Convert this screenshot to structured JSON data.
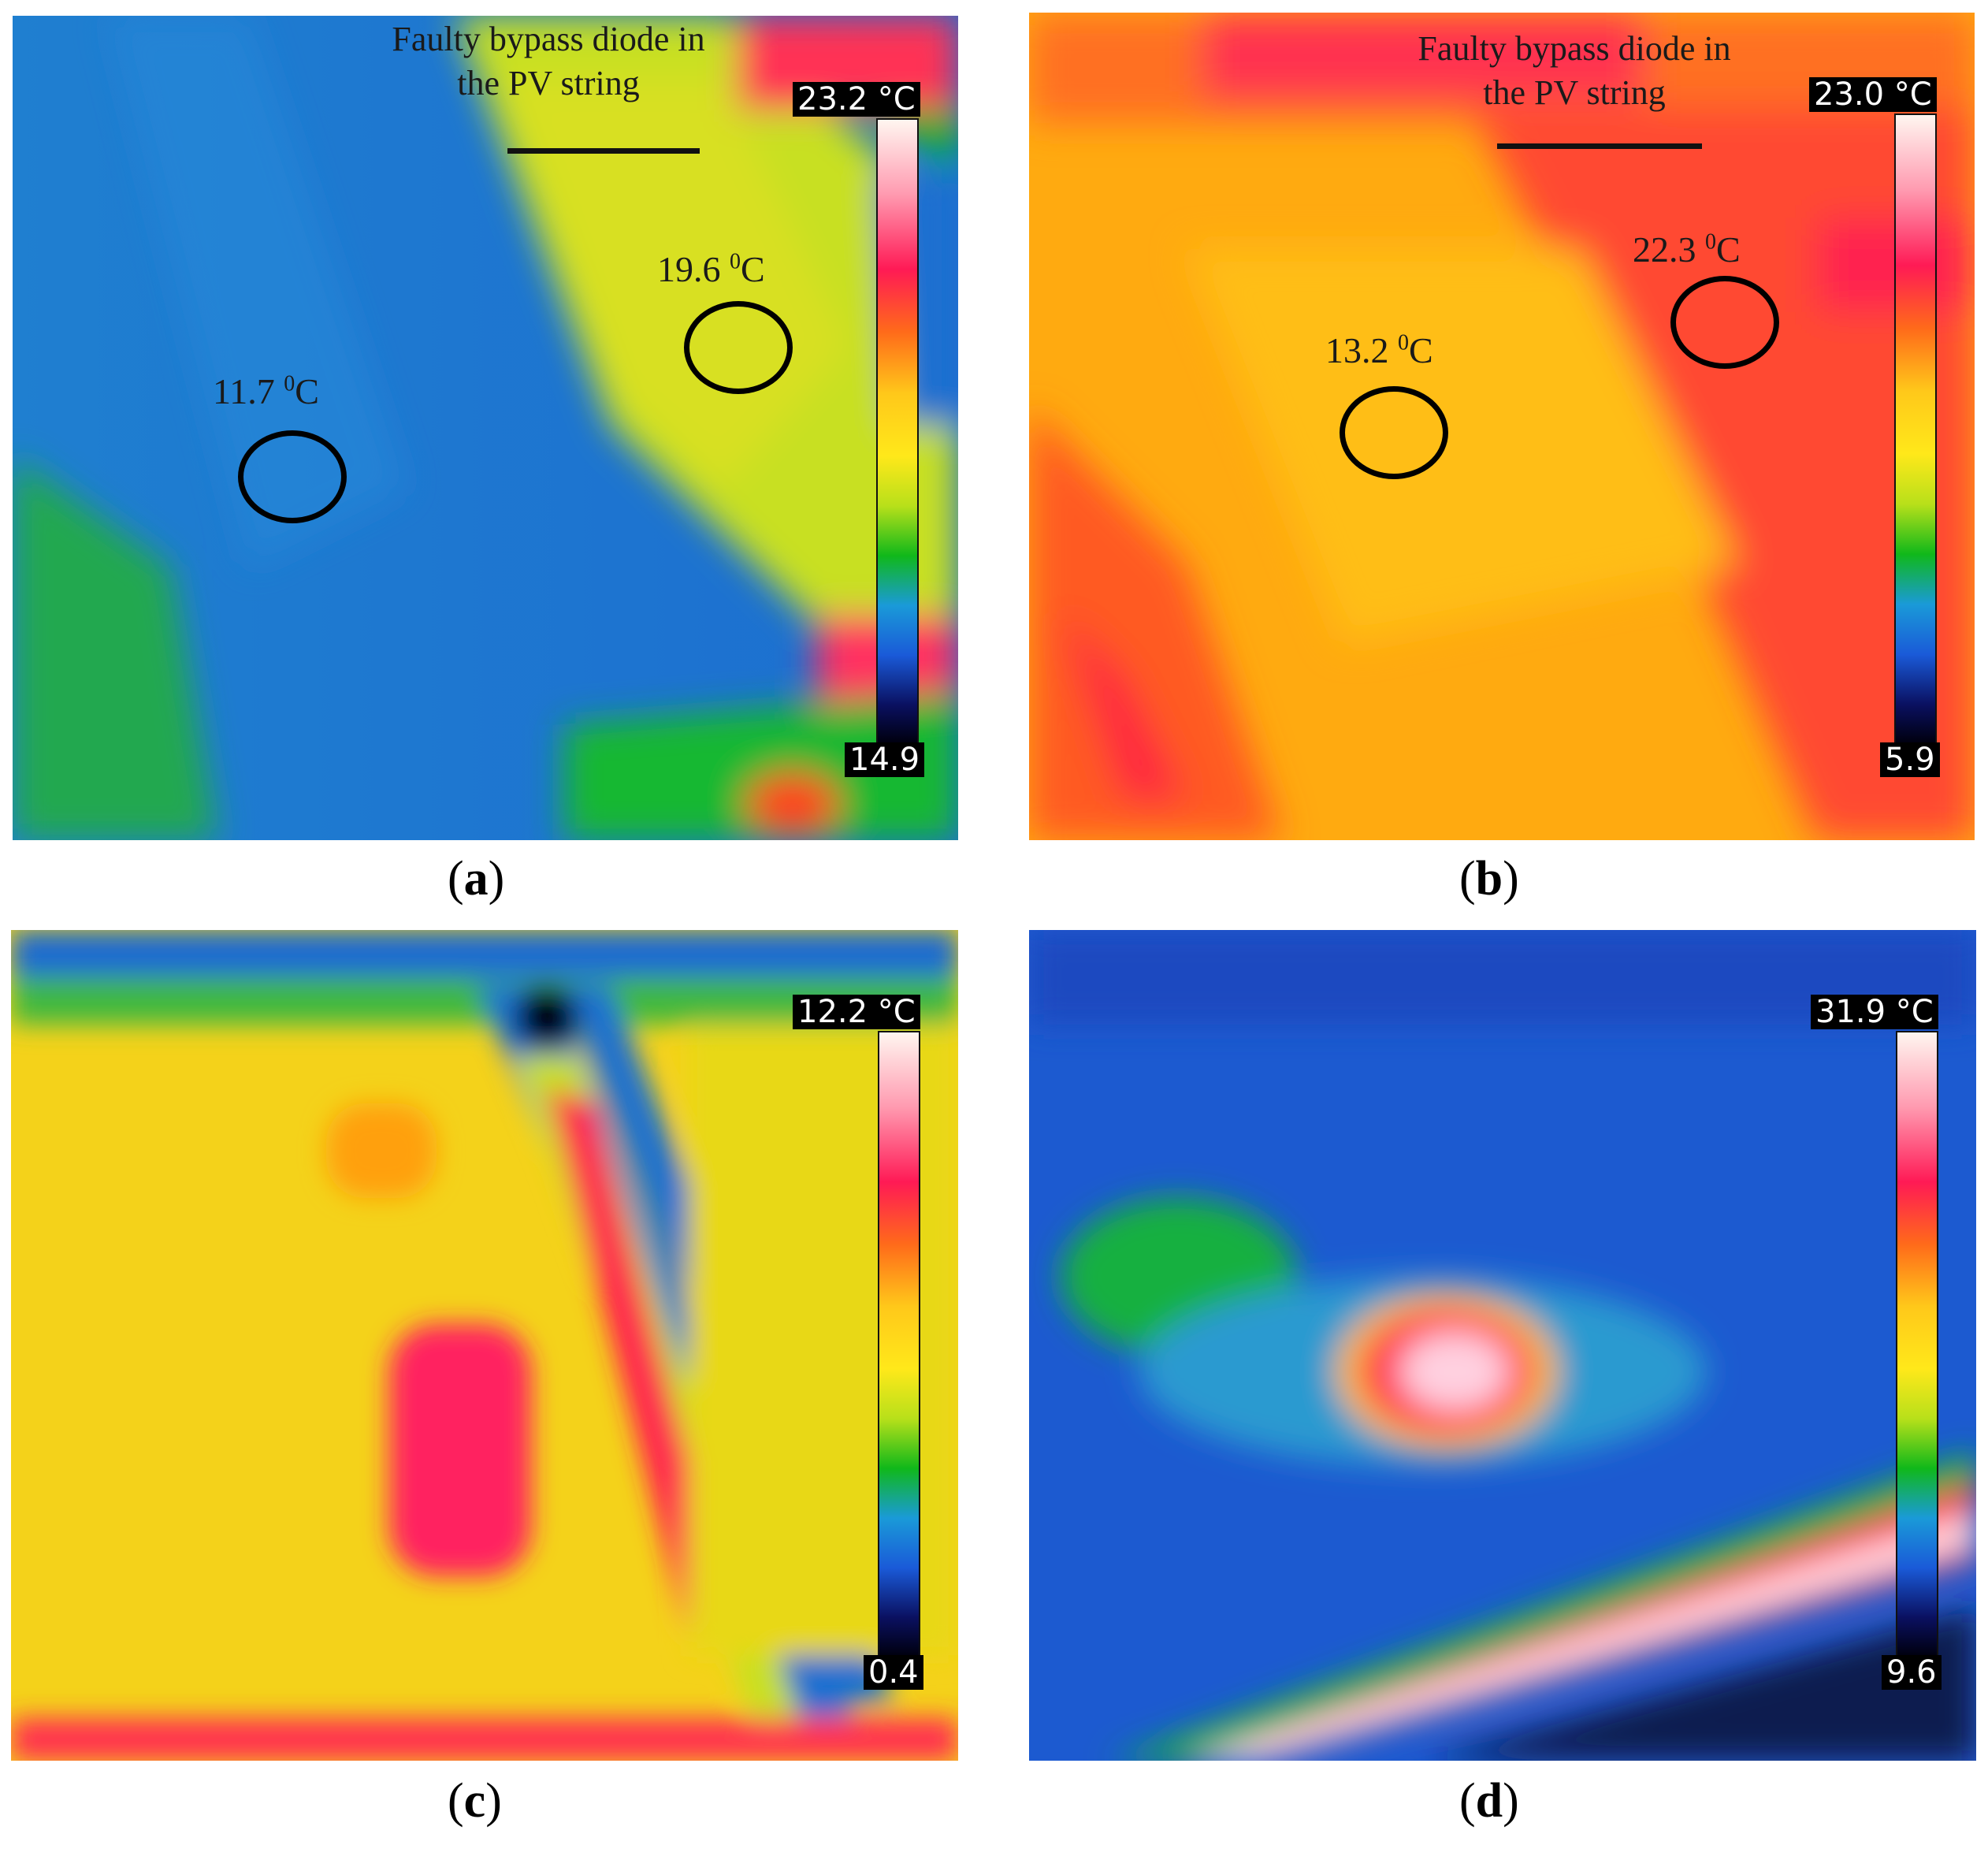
{
  "panels": [
    {
      "id": "a",
      "caption": "a",
      "scale_max": "23.2 °C",
      "scale_min": "14.9",
      "annotation_line1": "Faulty bypass diode in",
      "annotation_line2": "the PV string",
      "temps": [
        {
          "value": "11.7 ",
          "unit": "0",
          "suffix": "C"
        },
        {
          "value": "19.6 ",
          "unit": "0",
          "suffix": "C"
        }
      ]
    },
    {
      "id": "b",
      "caption": "b",
      "scale_max": "23.0 °C",
      "scale_min": "5.9",
      "annotation_line1": "Faulty bypass diode in",
      "annotation_line2": "the PV string",
      "temps": [
        {
          "value": "13.2 ",
          "unit": "0",
          "suffix": "C"
        },
        {
          "value": "22.3 ",
          "unit": "0",
          "suffix": "C"
        }
      ]
    },
    {
      "id": "c",
      "caption": "c",
      "scale_max": "12.2 °C",
      "scale_min": "0.4"
    },
    {
      "id": "d",
      "caption": "d",
      "scale_max": "31.9 °C",
      "scale_min": "9.6"
    }
  ],
  "colors": {
    "circle": "#000000",
    "colorbar_hot": "#ff1a55",
    "colorbar_cold": "#000010"
  }
}
